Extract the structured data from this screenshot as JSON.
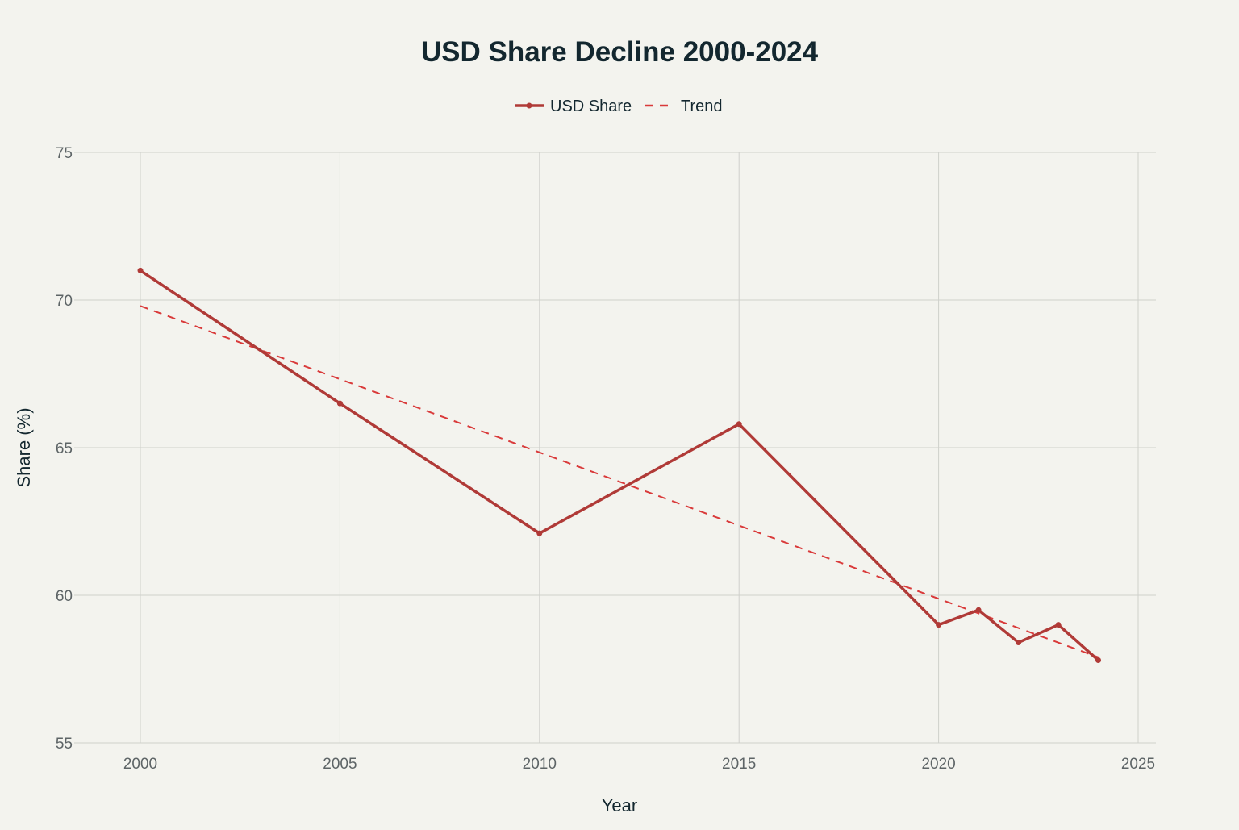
{
  "chart_data": {
    "type": "line",
    "title": "USD Share Decline 2000-2024",
    "xlabel": "Year",
    "ylabel": "Share (%)",
    "xlim": [
      1998.5,
      2025.5
    ],
    "ylim": [
      55,
      75
    ],
    "x_ticks": [
      2000,
      2005,
      2010,
      2015,
      2020,
      2025
    ],
    "y_ticks": [
      55,
      60,
      65,
      70,
      75
    ],
    "grid": true,
    "legend_position": "top-center",
    "series": [
      {
        "name": "USD Share",
        "color": "#b03a37",
        "style": "solid-markers",
        "x": [
          2000,
          2005,
          2010,
          2015,
          2020,
          2021,
          2022,
          2023,
          2024
        ],
        "y": [
          71.0,
          66.5,
          62.1,
          65.8,
          59.0,
          59.5,
          58.4,
          59.0,
          57.8
        ]
      },
      {
        "name": "Trend",
        "color": "#d93a3a",
        "style": "dashed",
        "x": [
          2000,
          2024
        ],
        "y": [
          69.8,
          57.9
        ]
      }
    ]
  }
}
